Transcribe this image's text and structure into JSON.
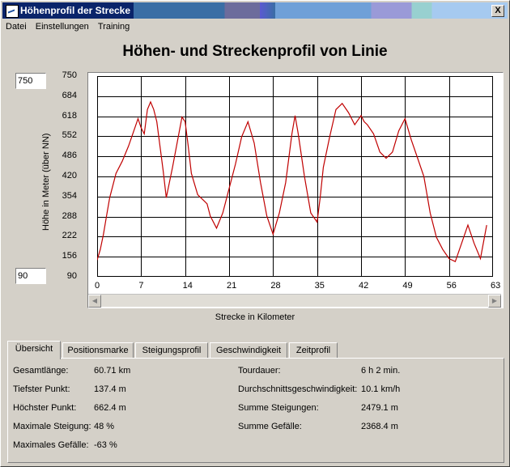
{
  "window": {
    "title": "Höhenprofil der Strecke",
    "close_label": "X"
  },
  "menu": [
    "Datei",
    "Einstellungen",
    "Training"
  ],
  "chart_title": "Höhen- und Streckenprofil von Linie",
  "ymax_input": "750",
  "ymin_input": "90",
  "chart_data": {
    "type": "line",
    "title": "Höhen- und Streckenprofil von Linie",
    "xlabel": "Strecke in Kilometer",
    "ylabel": "Höhe in Meter (über NN)",
    "xlim": [
      0,
      63
    ],
    "ylim": [
      90,
      750
    ],
    "x_ticks": [
      "0",
      "7",
      "14",
      "21",
      "28",
      "35",
      "42",
      "49",
      "56",
      "63"
    ],
    "y_ticks": [
      "750",
      "684",
      "618",
      "552",
      "486",
      "420",
      "354",
      "288",
      "222",
      "156",
      "90"
    ],
    "grid": true,
    "series": [
      {
        "color": "#c00000",
        "x": [
          0,
          0.5,
          1,
          1.5,
          2,
          3,
          4,
          5,
          6,
          6.5,
          7,
          7.5,
          8,
          8.5,
          9,
          9.5,
          10,
          10.5,
          11,
          12,
          13,
          13.5,
          14,
          14.5,
          15,
          16,
          17,
          17.5,
          18,
          19,
          20,
          21,
          22,
          23,
          24,
          25,
          26,
          27,
          28,
          29,
          30,
          31,
          31.5,
          32,
          33,
          34,
          35,
          35.5,
          36,
          37,
          38,
          39,
          40,
          41,
          42,
          42.5,
          43,
          44,
          45,
          46,
          47,
          48,
          49,
          50,
          51,
          52,
          53,
          54,
          55,
          56,
          57,
          58,
          59,
          60,
          61,
          62
        ],
        "y": [
          145,
          180,
          230,
          290,
          350,
          430,
          470,
          520,
          580,
          610,
          580,
          560,
          640,
          665,
          640,
          600,
          520,
          440,
          350,
          450,
          560,
          615,
          600,
          520,
          430,
          360,
          340,
          330,
          290,
          250,
          300,
          380,
          460,
          550,
          600,
          530,
          400,
          290,
          230,
          300,
          400,
          560,
          620,
          560,
          420,
          300,
          270,
          350,
          450,
          550,
          640,
          660,
          630,
          590,
          620,
          600,
          590,
          560,
          500,
          480,
          500,
          570,
          610,
          540,
          480,
          420,
          300,
          220,
          180,
          150,
          140,
          200,
          260,
          200,
          150,
          260
        ]
      }
    ]
  },
  "tabs": [
    "Übersicht",
    "Positionsmarke",
    "Steigungsprofil",
    "Geschwindigkeit",
    "Zeitprofil"
  ],
  "stats_left": [
    {
      "label": "Gesamtlänge:",
      "value": "60.71 km"
    },
    {
      "label": "Tiefster Punkt:",
      "value": "137.4 m"
    },
    {
      "label": "Höchster Punkt:",
      "value": "662.4 m"
    },
    {
      "label": "Maximale Steigung:",
      "value": "48 %"
    },
    {
      "label": "Maximales Gefälle:",
      "value": "-63 %"
    }
  ],
  "stats_right": [
    {
      "label": "Tourdauer:",
      "value": "6 h 2 min."
    },
    {
      "label": "Durchschnittsgeschwindigkeit:",
      "value": "10.1 km/h"
    },
    {
      "label": "Summe Steigungen:",
      "value": "2479.1 m"
    },
    {
      "label": "Summe Gefälle:",
      "value": "2368.4 m"
    }
  ]
}
